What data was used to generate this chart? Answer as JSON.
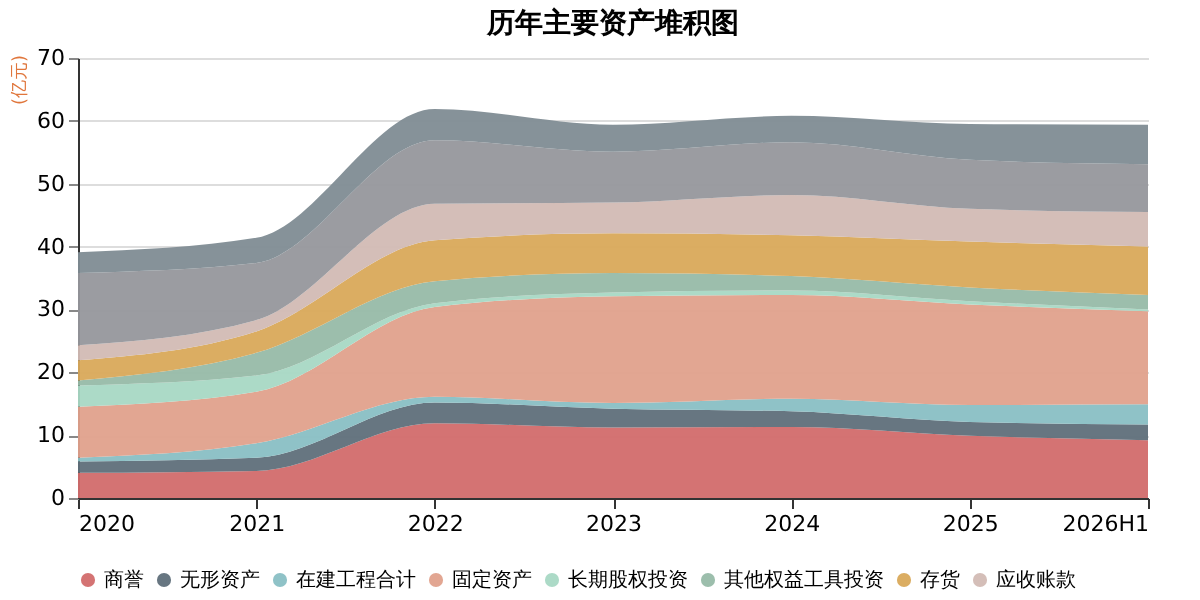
{
  "chart_data": {
    "type": "area",
    "title": "历年主要资产堆积图",
    "ylabel": "(亿元)",
    "stacked": true,
    "categories": [
      "2020",
      "2021",
      "2022",
      "2023",
      "2024",
      "2025",
      "2026H1"
    ],
    "series": [
      {
        "name": "商誉",
        "color": "#d26b6b",
        "values": [
          4.0,
          4.3,
          11.9,
          11.2,
          11.3,
          9.9,
          9.2
        ]
      },
      {
        "name": "无形资产",
        "color": "#5f6f7a",
        "values": [
          1.8,
          2.1,
          3.3,
          3.0,
          2.5,
          2.2,
          2.5
        ]
      },
      {
        "name": "在建工程合计",
        "color": "#89bfc4",
        "values": [
          0.6,
          2.3,
          0.9,
          0.9,
          2.0,
          2.7,
          3.2
        ]
      },
      {
        "name": "固定资产",
        "color": "#e0a18c",
        "values": [
          8.1,
          8.2,
          14.3,
          17.0,
          16.5,
          16.0,
          14.8
        ]
      },
      {
        "name": "长期股权投资",
        "color": "#a8d8c4",
        "values": [
          3.4,
          2.6,
          0.6,
          0.6,
          0.7,
          0.5,
          0.3
        ]
      },
      {
        "name": "其他权益工具投资",
        "color": "#97bba8",
        "values": [
          0.8,
          3.6,
          3.5,
          3.1,
          2.3,
          2.2,
          2.3
        ]
      },
      {
        "name": "存货",
        "color": "#d9a95a",
        "values": [
          3.2,
          3.4,
          6.5,
          6.3,
          6.5,
          7.3,
          7.7
        ]
      },
      {
        "name": "应收账款",
        "color": "#d2bab4",
        "values": [
          2.4,
          1.8,
          5.8,
          4.9,
          6.4,
          5.2,
          5.5
        ]
      },
      {
        "color": "#96979c",
        "values": [
          11.5,
          9.1,
          10.1,
          8.1,
          8.4,
          7.8,
          7.6
        ]
      },
      {
        "color": "#7f8c94",
        "values": [
          3.3,
          4.0,
          5.0,
          4.3,
          4.2,
          5.7,
          6.3
        ]
      }
    ],
    "ylim": [
      0,
      70
    ],
    "yticks": [
      0,
      10,
      20,
      30,
      40,
      50,
      60,
      70
    ],
    "grid": "y",
    "legend": "bottom"
  }
}
